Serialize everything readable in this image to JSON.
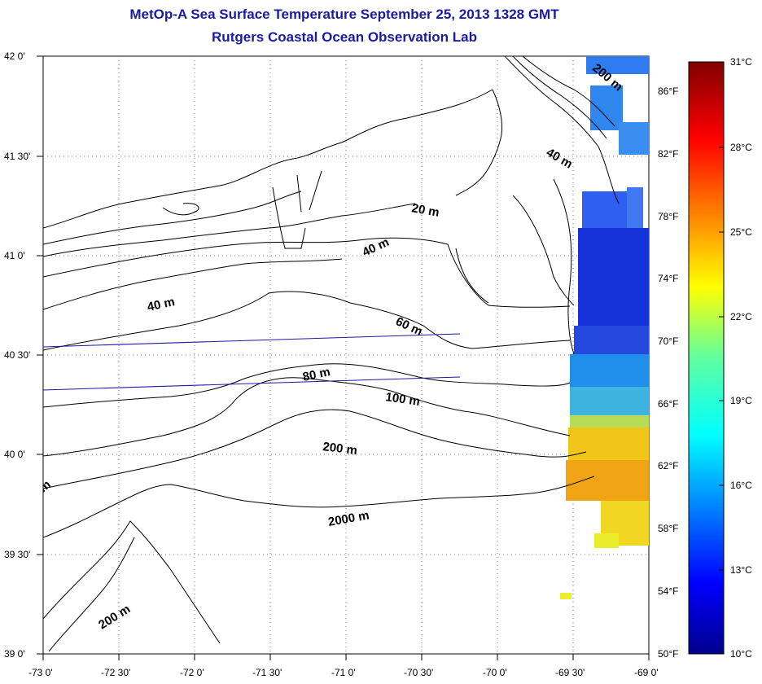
{
  "title": "MetOp-A Sea Surface Temperature September 25, 2013 1328 GMT",
  "subtitle": "Rutgers Coastal Ocean Observation Lab",
  "map": {
    "lat_labels": [
      "42 0'",
      "41 30'",
      "41 0'",
      "40 30'",
      "40 0'",
      "39 30'",
      "39 0'"
    ],
    "lon_labels": [
      "-73 0'",
      "-72 30'",
      "-72 0'",
      "-71 30'",
      "-71 0'",
      "-70 30'",
      "-70 0'",
      "-69 30'",
      "-69 0'"
    ],
    "fahrenheit_labels": [
      "86°F",
      "82°F",
      "78°F",
      "74°F",
      "70°F",
      "66°F",
      "62°F",
      "58°F",
      "54°F",
      "50°F"
    ],
    "celsius_labels": [
      "31°C",
      "28°C",
      "25°C",
      "22°C",
      "19°C",
      "16°C",
      "13°C",
      "10°C"
    ],
    "contour_labels": [
      "20 m",
      "40 m",
      "40 m",
      "40 m",
      "60 m",
      "80 m",
      "100 m",
      "200 m",
      "2000 m",
      "200 m",
      "200 m",
      "m"
    ],
    "colorbar": {
      "min_c": 10,
      "max_c": 31,
      "min_f": 50,
      "max_f": 88
    },
    "grid": "dotted"
  }
}
